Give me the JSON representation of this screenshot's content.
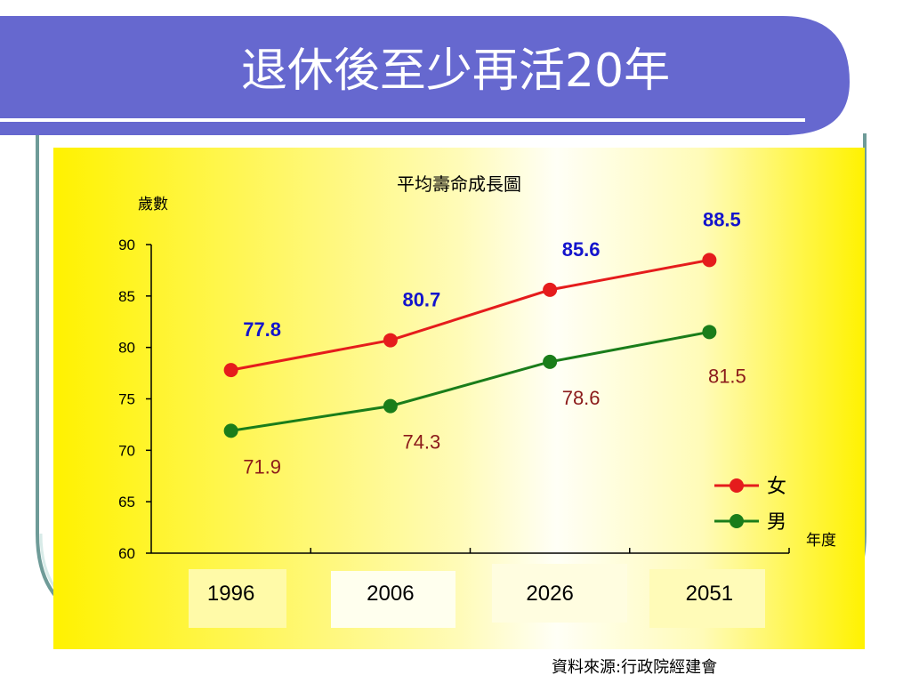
{
  "slide": {
    "title": "退休後至少再活20年",
    "source": "資料來源:行政院經建會",
    "colors": {
      "banner": "#6668cf",
      "frame_line": "#6e9b98",
      "panel_yellow": "#fff200",
      "panel_white": "#fffff6"
    }
  },
  "chart_data": {
    "type": "line",
    "title": "平均壽命成長圖",
    "ylabel": "歲數",
    "xlabel": "年度",
    "categories": [
      "1996",
      "2006",
      "2026",
      "2051"
    ],
    "ylim": [
      60,
      90
    ],
    "yticks": [
      60,
      65,
      70,
      75,
      80,
      85,
      90
    ],
    "grid": false,
    "legend_position": "bottom-right",
    "series": [
      {
        "name": "女",
        "values": [
          77.8,
          80.7,
          85.6,
          88.5
        ],
        "labels": [
          "77.8",
          "80.7",
          "85.6",
          "88.5"
        ],
        "color": "#e51c1c",
        "label_color": "#1414cc"
      },
      {
        "name": "男",
        "values": [
          71.9,
          74.3,
          78.6,
          81.5
        ],
        "labels": [
          "71.9",
          "74.3",
          "78.6",
          "81.5"
        ],
        "color": "#1a7d1a",
        "label_color": "#8b1a1a"
      }
    ]
  }
}
